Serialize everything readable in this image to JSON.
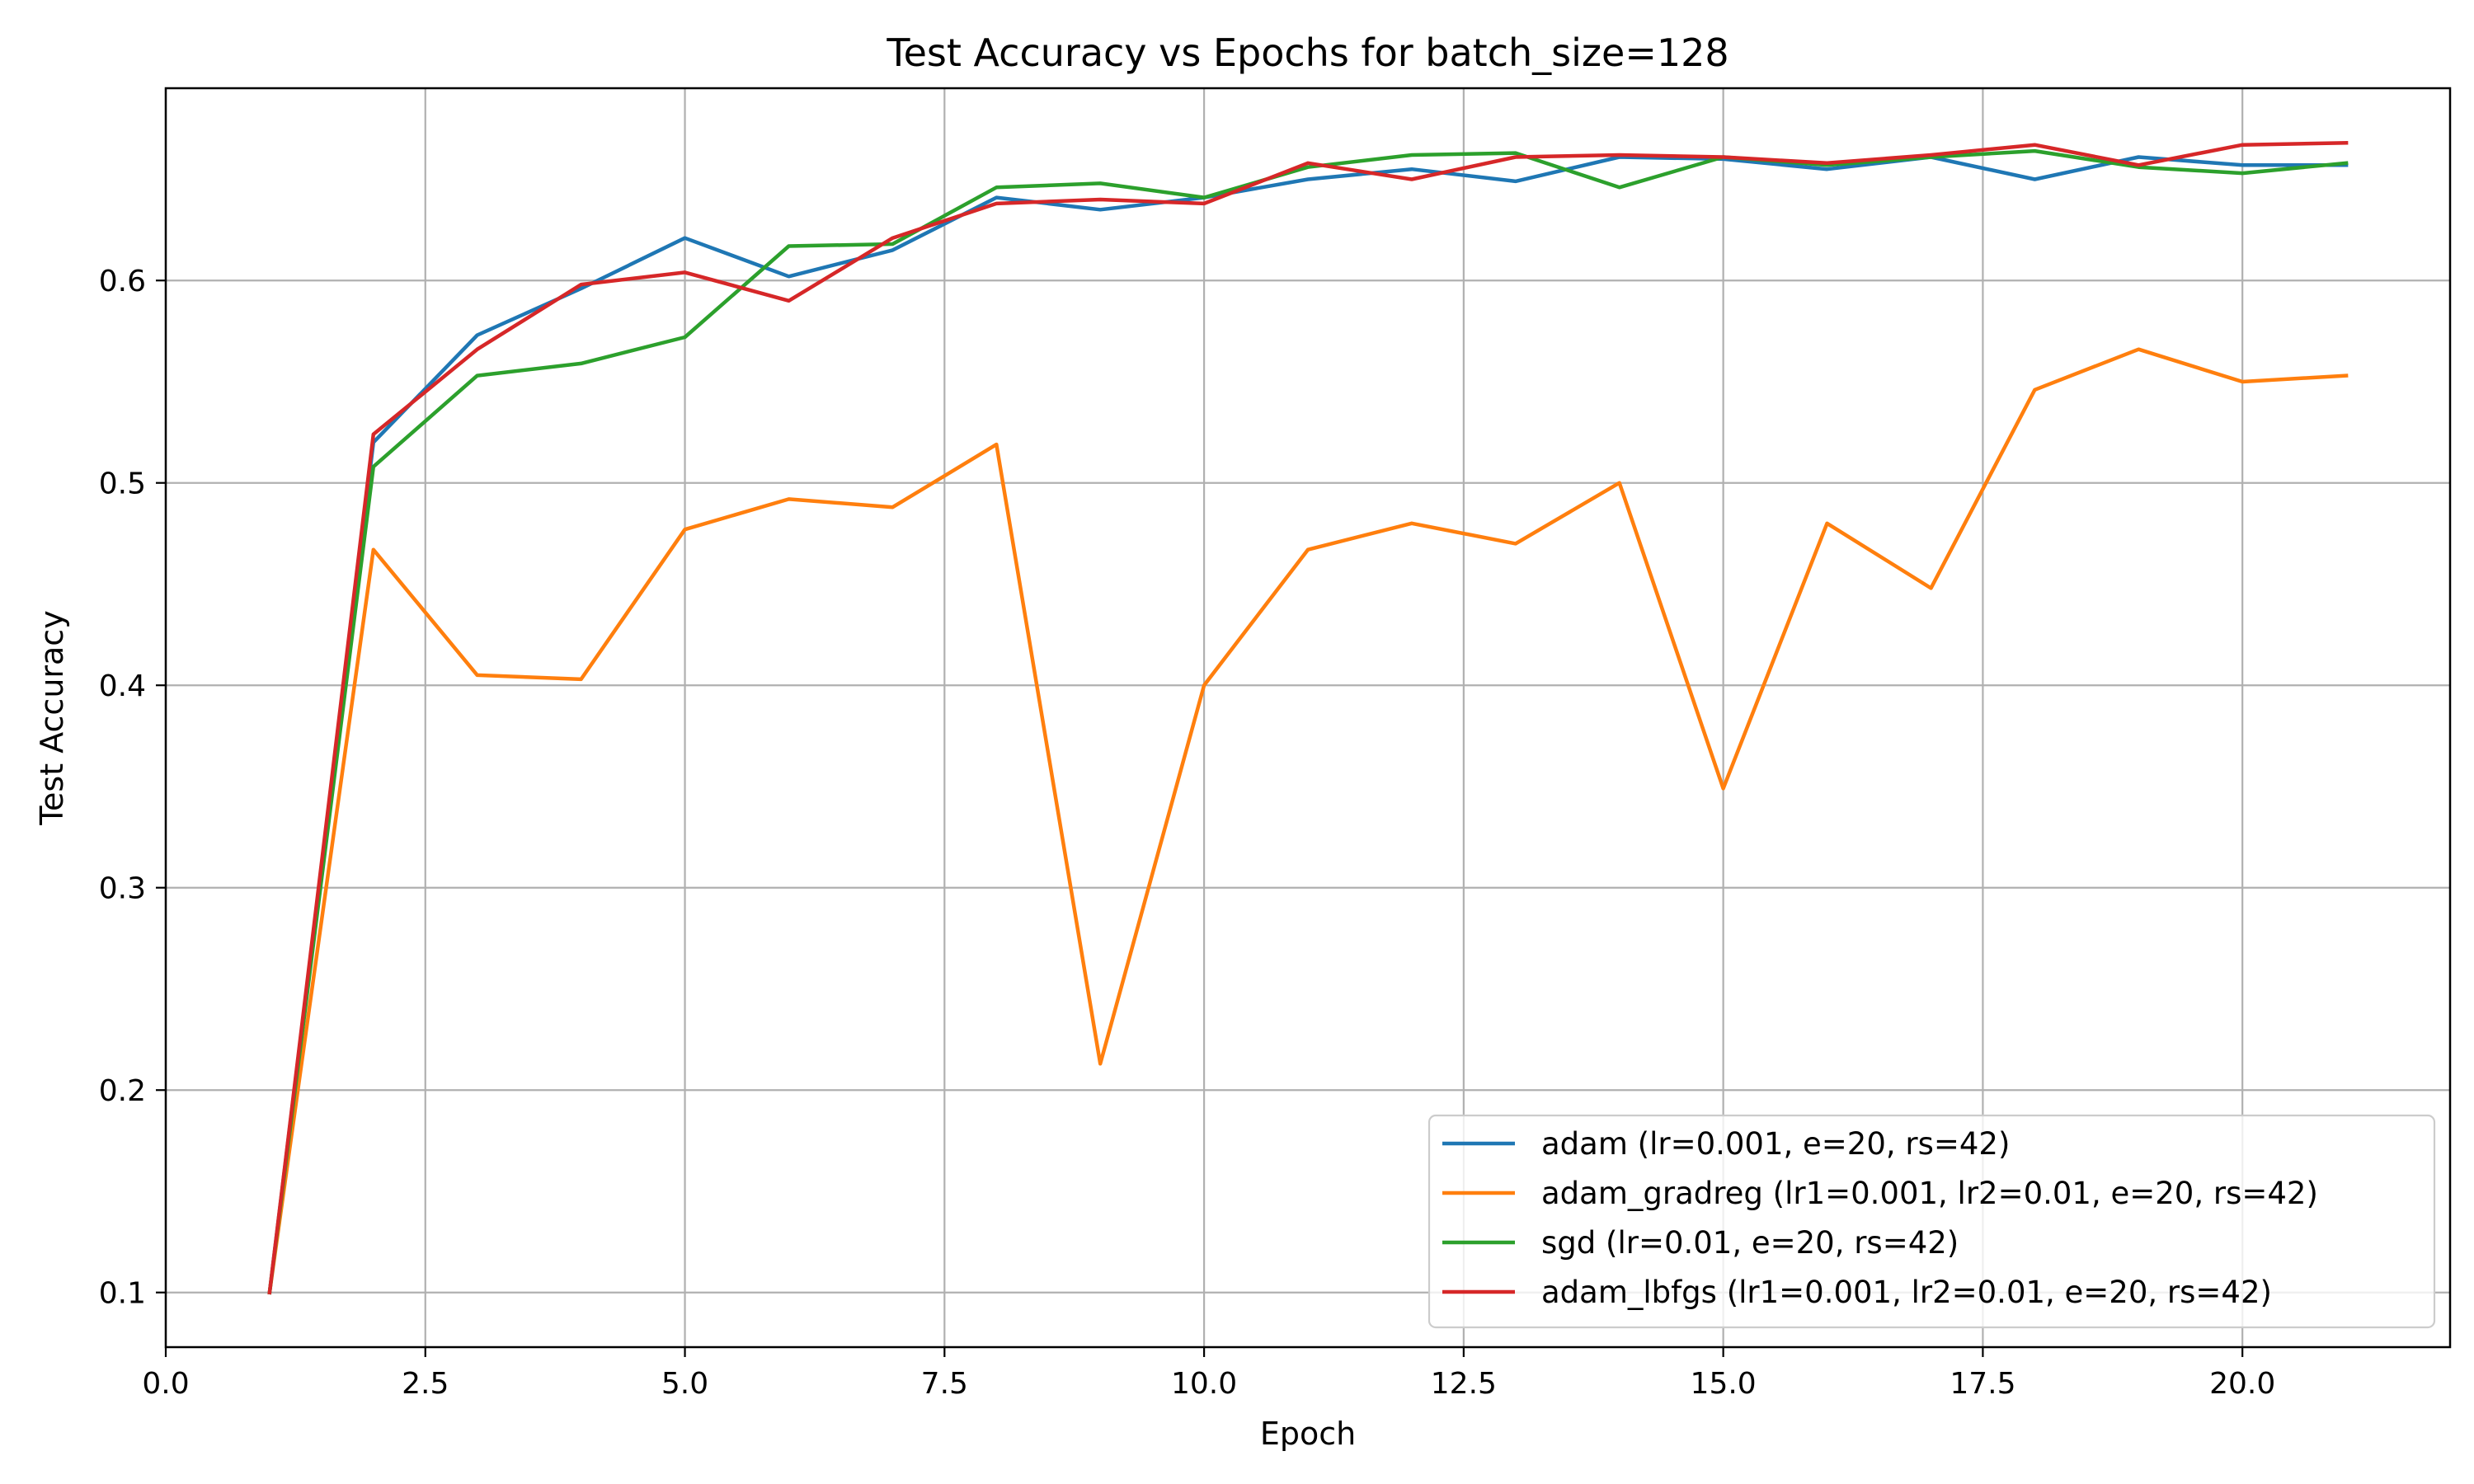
{
  "chart_data": {
    "type": "line",
    "title": "Test Accuracy vs Epochs for batch_size=128",
    "xlabel": "Epoch",
    "ylabel": "Test Accuracy",
    "xlim": [
      0.0,
      22.0
    ],
    "ylim": [
      0.073,
      0.695
    ],
    "xticks": [
      0.0,
      2.5,
      5.0,
      7.5,
      10.0,
      12.5,
      15.0,
      17.5,
      20.0
    ],
    "xtick_labels": [
      "0.0",
      "2.5",
      "5.0",
      "7.5",
      "10.0",
      "12.5",
      "15.0",
      "17.5",
      "20.0"
    ],
    "yticks": [
      0.1,
      0.2,
      0.3,
      0.4,
      0.5,
      0.6
    ],
    "ytick_labels": [
      "0.1",
      "0.2",
      "0.3",
      "0.4",
      "0.5",
      "0.6"
    ],
    "grid": true,
    "legend_position": "lower-right",
    "x": [
      1,
      2,
      3,
      4,
      5,
      6,
      7,
      8,
      9,
      10,
      11,
      12,
      13,
      14,
      15,
      16,
      17,
      18,
      19,
      20,
      21
    ],
    "series": [
      {
        "name": "adam (lr=0.001, e=20, rs=42)",
        "color": "#1f77b4",
        "values": [
          0.1,
          0.52,
          0.573,
          0.596,
          0.621,
          0.602,
          0.615,
          0.641,
          0.635,
          0.641,
          0.65,
          0.655,
          0.649,
          0.661,
          0.66,
          0.655,
          0.661,
          0.65,
          0.661,
          0.657,
          0.657
        ]
      },
      {
        "name": "adam_gradreg (lr1=0.001, lr2=0.01, e=20, rs=42)",
        "color": "#ff7f0e",
        "values": [
          0.1,
          0.467,
          0.405,
          0.403,
          0.477,
          0.492,
          0.488,
          0.519,
          0.213,
          0.4,
          0.467,
          0.48,
          0.47,
          0.5,
          0.349,
          0.48,
          0.448,
          0.546,
          0.566,
          0.55,
          0.553
        ]
      },
      {
        "name": "sgd (lr=0.01, e=20, rs=42)",
        "color": "#2ca02c",
        "values": [
          0.1,
          0.508,
          0.553,
          0.559,
          0.572,
          0.617,
          0.618,
          0.646,
          0.648,
          0.641,
          0.656,
          0.662,
          0.663,
          0.646,
          0.661,
          0.657,
          0.661,
          0.664,
          0.656,
          0.653,
          0.658
        ]
      },
      {
        "name": "adam_lbfgs (lr1=0.001, lr2=0.01, e=20, rs=42)",
        "color": "#d62728",
        "values": [
          0.1,
          0.524,
          0.566,
          0.598,
          0.604,
          0.59,
          0.621,
          0.638,
          0.64,
          0.638,
          0.658,
          0.65,
          0.661,
          0.662,
          0.661,
          0.658,
          0.662,
          0.667,
          0.657,
          0.667,
          0.668
        ]
      }
    ]
  }
}
